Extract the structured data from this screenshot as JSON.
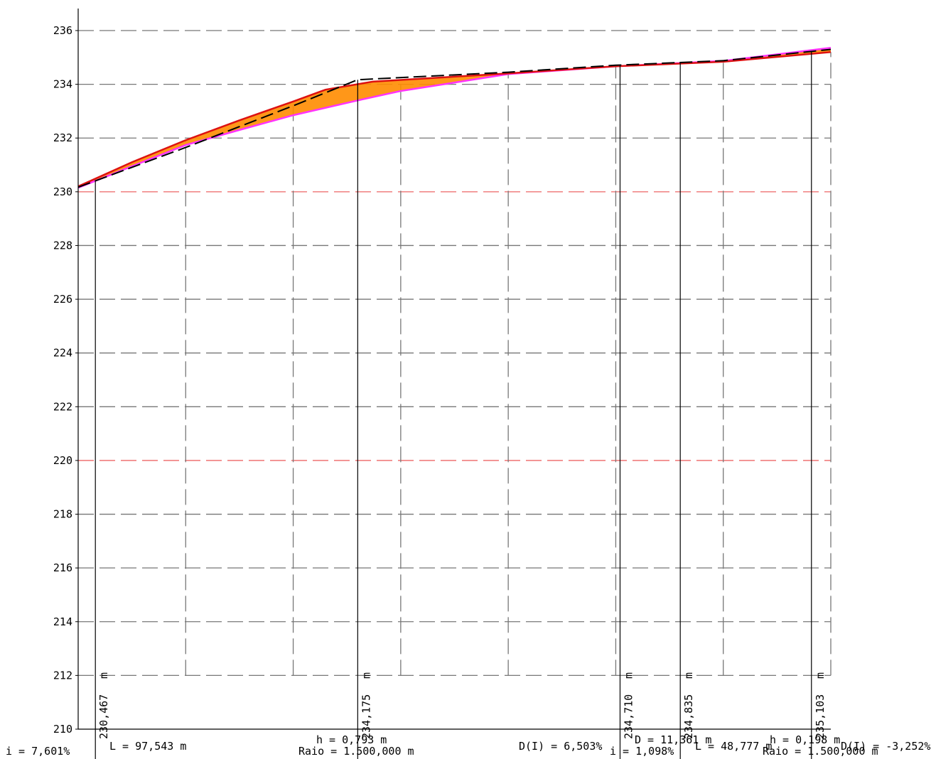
{
  "chart_data": {
    "type": "line",
    "ylim": [
      210,
      236
    ],
    "xlim": [
      0,
      350
    ],
    "y_ticks": [
      236,
      234,
      232,
      230,
      228,
      226,
      224,
      222,
      220,
      218,
      216,
      214,
      212,
      210
    ],
    "highlight_ticks": [
      230,
      220
    ],
    "v_grid": [
      50,
      100,
      150,
      200,
      250,
      300,
      350
    ],
    "series": [
      {
        "role": "terrain-dashed",
        "x": [
          0,
          50,
          100,
          130,
          200,
          250,
          300,
          350
        ],
        "y": [
          230.17,
          231.65,
          233.2,
          234.17,
          234.45,
          234.71,
          234.88,
          235.3
        ]
      },
      {
        "role": "profile-red",
        "x": [
          0,
          25,
          50,
          75,
          100,
          115,
          137,
          195,
          250,
          300,
          350
        ],
        "y": [
          230.2,
          231.1,
          231.92,
          232.66,
          233.36,
          233.8,
          234.1,
          234.38,
          234.67,
          234.84,
          235.2
        ]
      },
      {
        "role": "profile-magenta",
        "x": [
          0,
          25,
          50,
          75,
          100,
          130,
          150,
          200,
          250,
          300,
          350
        ],
        "y": [
          230.15,
          230.95,
          231.74,
          232.3,
          232.85,
          233.4,
          233.75,
          234.38,
          234.67,
          234.87,
          235.36
        ]
      }
    ],
    "vertical_markers": [
      {
        "x": 8,
        "label": "230,467",
        "unit": "m"
      },
      {
        "x": 130,
        "label": "234,175",
        "unit": "m"
      },
      {
        "x": 252,
        "label": "234,710",
        "unit": "m"
      },
      {
        "x": 280,
        "label": "234,835",
        "unit": "m"
      },
      {
        "x": 341,
        "label": "235,103",
        "unit": "m"
      }
    ],
    "annotations": [
      {
        "id": "i1",
        "text": "i = 7,601%"
      },
      {
        "id": "L1",
        "text": "L = 97,543  m"
      },
      {
        "id": "h1",
        "text": "h = 0,793  m"
      },
      {
        "id": "raio1",
        "text": "Raio = 1.500,000  m"
      },
      {
        "id": "d1",
        "text": "D(I) = 6,503%"
      },
      {
        "id": "i2",
        "text": "i = 1,098%"
      },
      {
        "id": "D2",
        "text": "D = 11,361  m"
      },
      {
        "id": "L2",
        "text": "L = 48,777  m"
      },
      {
        "id": "h2",
        "text": "h = 0,198  m"
      },
      {
        "id": "raio2",
        "text": "Raio = 1.500,000  m"
      },
      {
        "id": "d2",
        "text": "D(I) = -3,252%"
      }
    ],
    "colors": {
      "grid": "#777777",
      "highlight_grid": "#ee6666",
      "fill": "#ff8c00",
      "profile_red": "#dd1111",
      "profile_magenta": "#ff33ff",
      "terrain": "#000000"
    }
  }
}
